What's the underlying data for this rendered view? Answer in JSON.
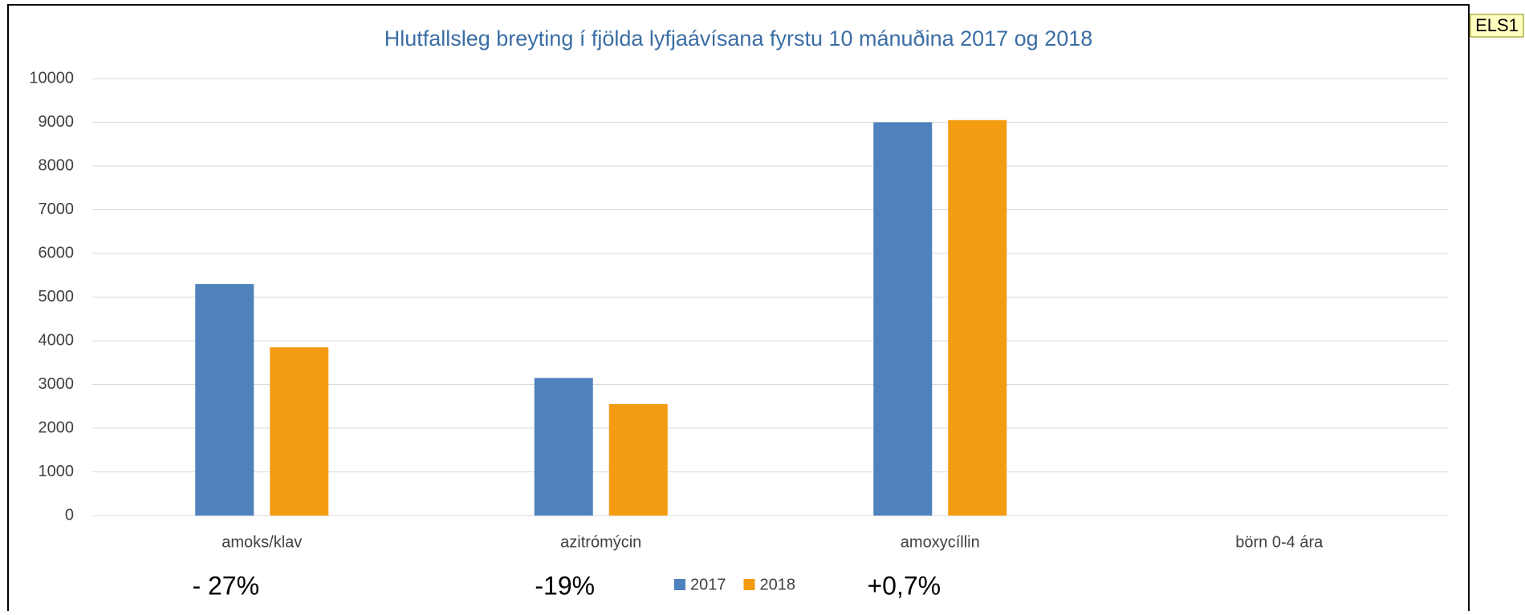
{
  "chart_data": {
    "type": "bar",
    "title": "Hlutfallsleg breyting í fjölda lyfjaávísana fyrstu 10 mánuðina 2017 og 2018",
    "categories": [
      "amoks/klav",
      "azitrómýcin",
      "amoxycíllin",
      "börn 0-4 ára"
    ],
    "series": [
      {
        "name": "2017",
        "color": "#4f81bd",
        "values": [
          5300,
          3150,
          9000,
          null
        ]
      },
      {
        "name": "2018",
        "color": "#f39c12",
        "values": [
          3850,
          2550,
          9050,
          null
        ]
      }
    ],
    "ylim": [
      0,
      10000
    ],
    "yticks": [
      0,
      1000,
      2000,
      3000,
      4000,
      5000,
      6000,
      7000,
      8000,
      9000,
      10000
    ],
    "grid": true,
    "legend": "bottom",
    "annotations": [
      "- 27%",
      "-19%",
      "+0,7%"
    ],
    "tag": "ELS1"
  }
}
